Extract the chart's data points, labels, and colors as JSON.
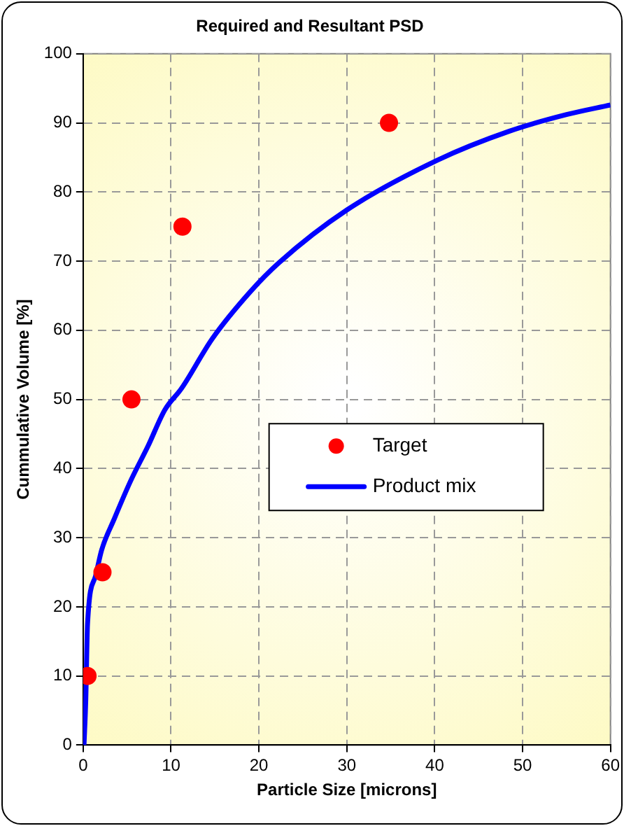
{
  "chart_data": {
    "type": "scatter",
    "title": "Required and Resultant PSD",
    "xlabel": "Particle Size [microns]",
    "ylabel": "Cummulative Volume [%]",
    "xlim": [
      0,
      60
    ],
    "xticks": [
      0,
      10,
      20,
      30,
      40,
      50,
      60
    ],
    "ylim": [
      0,
      100
    ],
    "yticks": [
      0,
      10,
      20,
      30,
      40,
      50,
      60,
      70,
      80,
      90,
      100
    ],
    "grid": true,
    "legend": "right",
    "series": [
      {
        "name": "Target",
        "type": "scatter",
        "marker": "circle",
        "color": "#ff0000",
        "x": [
          0.5,
          2.2,
          5.5,
          11.3,
          34.8
        ],
        "values": [
          10,
          25,
          50,
          75,
          90
        ]
      },
      {
        "name": "Product mix",
        "type": "line",
        "marker": "none",
        "line_style": "solid",
        "color": "#0000ff",
        "x": [
          0.1,
          0.3,
          0.5,
          1.4,
          2.1,
          3.5,
          5.4,
          7.4,
          9.3,
          11.2,
          14.7,
          19.1,
          22.3,
          30.0,
          40.3,
          48.5,
          55.0,
          60.0
        ],
        "values": [
          0,
          6.5,
          17.5,
          24.4,
          28.2,
          32.6,
          38.2,
          43.3,
          48.5,
          51.6,
          58.8,
          65.7,
          69.8,
          77.4,
          84.6,
          88.8,
          91.2,
          92.6
        ]
      }
    ]
  }
}
